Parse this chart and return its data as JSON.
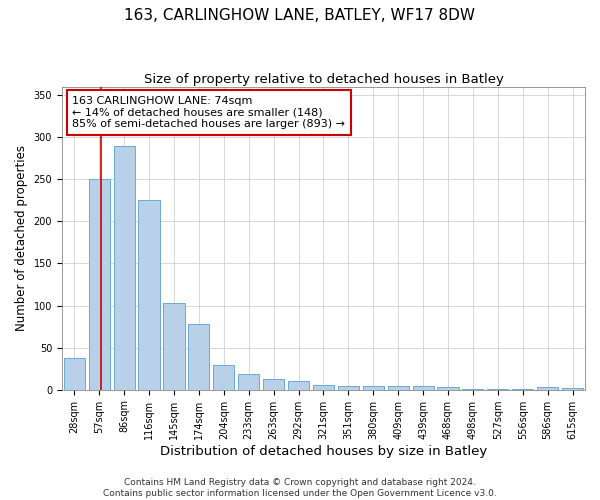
{
  "title1": "163, CARLINGHOW LANE, BATLEY, WF17 8DW",
  "title2": "Size of property relative to detached houses in Batley",
  "xlabel": "Distribution of detached houses by size in Batley",
  "ylabel": "Number of detached properties",
  "categories": [
    "28sqm",
    "57sqm",
    "86sqm",
    "116sqm",
    "145sqm",
    "174sqm",
    "204sqm",
    "233sqm",
    "263sqm",
    "292sqm",
    "321sqm",
    "351sqm",
    "380sqm",
    "409sqm",
    "439sqm",
    "468sqm",
    "498sqm",
    "527sqm",
    "556sqm",
    "586sqm",
    "615sqm"
  ],
  "values": [
    38,
    250,
    290,
    225,
    103,
    78,
    29,
    19,
    13,
    10,
    6,
    5,
    5,
    4,
    4,
    3,
    1,
    1,
    1,
    3,
    2
  ],
  "bar_color": "#b8d0e8",
  "bar_edge_color": "#6aaad4",
  "bar_width": 0.85,
  "ylim": [
    0,
    360
  ],
  "yticks": [
    0,
    50,
    100,
    150,
    200,
    250,
    300,
    350
  ],
  "vline_color": "#cc0000",
  "annotation_line1": "163 CARLINGHOW LANE: 74sqm",
  "annotation_line2": "← 14% of detached houses are smaller (148)",
  "annotation_line3": "85% of semi-detached houses are larger (893) →",
  "annotation_box_color": "#ffffff",
  "annotation_box_edge": "#cc0000",
  "footer_text": "Contains HM Land Registry data © Crown copyright and database right 2024.\nContains public sector information licensed under the Open Government Licence v3.0.",
  "bg_color": "#ffffff",
  "grid_color": "#d0d0d0",
  "title1_fontsize": 11,
  "title2_fontsize": 9.5,
  "xlabel_fontsize": 9.5,
  "ylabel_fontsize": 8.5,
  "tick_fontsize": 7,
  "annotation_fontsize": 8,
  "footer_fontsize": 6.5
}
